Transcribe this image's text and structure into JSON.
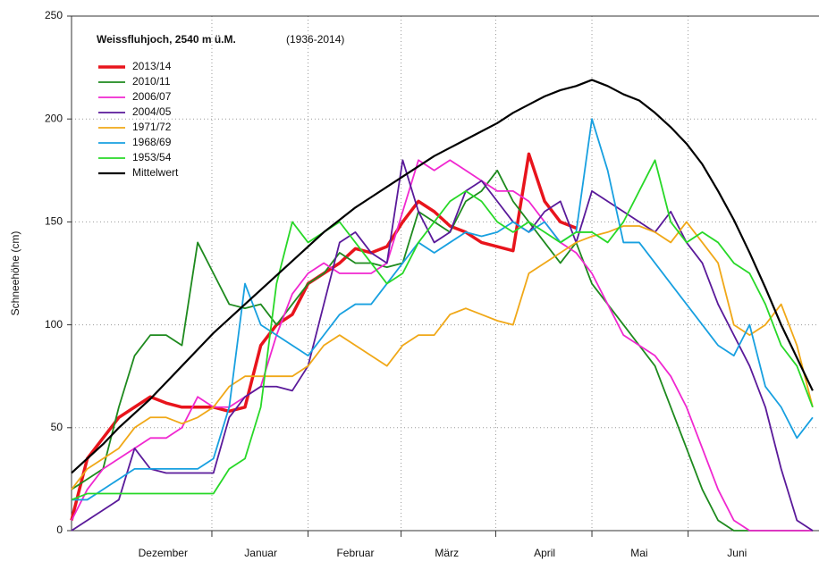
{
  "chart_data": {
    "type": "line",
    "title": "Weissfluhjoch, 2540 m ü.M.",
    "subtitle": "(1936-2014)",
    "y_label": "Schneehöhe (cm)",
    "x": [
      -14,
      -9,
      -4,
      1,
      6,
      11,
      16,
      21,
      26,
      31,
      36,
      41,
      46,
      51,
      56,
      61,
      66,
      71,
      76,
      81,
      86,
      91,
      96,
      101,
      106,
      111,
      116,
      121,
      126,
      131,
      136,
      141,
      146,
      151,
      156,
      161,
      166,
      171,
      176,
      181,
      186,
      191,
      196,
      201,
      206,
      211,
      216,
      221
    ],
    "xlim": [
      -14,
      223
    ],
    "xticks": [
      {
        "value": 15,
        "label": "Dezember"
      },
      {
        "value": 46,
        "label": "Januar"
      },
      {
        "value": 76,
        "label": "Februar"
      },
      {
        "value": 105,
        "label": "März"
      },
      {
        "value": 136,
        "label": "April"
      },
      {
        "value": 166,
        "label": "Mai"
      },
      {
        "value": 197,
        "label": "Juni"
      }
    ],
    "ylim": [
      0,
      250
    ],
    "yticks": [
      0,
      50,
      100,
      150,
      200,
      250
    ],
    "grid": true,
    "legend": "upper left",
    "series": [
      {
        "name": "2013/14",
        "color": "#e8141c",
        "width": 3.5,
        "values": [
          5,
          35,
          45,
          55,
          60,
          65,
          62,
          60,
          60,
          60,
          58,
          60,
          90,
          100,
          105,
          120,
          125,
          130,
          137,
          135,
          138,
          150,
          160,
          155,
          148,
          145,
          140,
          138,
          136,
          183,
          160,
          150,
          147,
          null,
          null,
          null,
          null,
          null,
          null,
          null,
          null,
          null,
          null,
          null,
          null,
          null,
          null,
          null
        ]
      },
      {
        "name": "2010/11",
        "color": "#1e8a1e",
        "width": 1.8,
        "values": [
          20,
          25,
          30,
          60,
          85,
          95,
          95,
          90,
          140,
          125,
          110,
          108,
          110,
          100,
          110,
          120,
          125,
          135,
          130,
          130,
          128,
          130,
          155,
          150,
          145,
          160,
          165,
          175,
          160,
          150,
          140,
          130,
          140,
          120,
          110,
          100,
          90,
          80,
          60,
          40,
          20,
          5,
          0,
          0,
          0,
          0,
          0,
          0
        ]
      },
      {
        "name": "2006/07",
        "color": "#f028d0",
        "width": 1.8,
        "values": [
          5,
          20,
          30,
          35,
          40,
          45,
          45,
          50,
          65,
          60,
          60,
          65,
          70,
          95,
          115,
          125,
          130,
          125,
          125,
          125,
          130,
          155,
          180,
          175,
          180,
          175,
          170,
          165,
          165,
          160,
          150,
          140,
          135,
          125,
          110,
          95,
          90,
          85,
          75,
          60,
          40,
          20,
          5,
          0,
          0,
          0,
          0,
          0
        ]
      },
      {
        "name": "2004/05",
        "color": "#5a1a9a",
        "width": 1.8,
        "values": [
          0,
          5,
          10,
          15,
          40,
          30,
          28,
          28,
          28,
          28,
          55,
          65,
          70,
          70,
          68,
          80,
          110,
          140,
          145,
          135,
          130,
          180,
          155,
          140,
          145,
          165,
          170,
          160,
          150,
          145,
          155,
          160,
          140,
          165,
          160,
          155,
          150,
          145,
          155,
          140,
          130,
          110,
          95,
          80,
          60,
          30,
          5,
          0
        ]
      },
      {
        "name": "1971/72",
        "color": "#f0a818",
        "width": 1.8,
        "values": [
          20,
          30,
          35,
          40,
          50,
          55,
          55,
          52,
          55,
          60,
          70,
          75,
          75,
          75,
          75,
          80,
          90,
          95,
          90,
          85,
          80,
          90,
          95,
          95,
          105,
          108,
          105,
          102,
          100,
          125,
          130,
          135,
          140,
          143,
          145,
          148,
          148,
          145,
          140,
          150,
          140,
          130,
          100,
          95,
          100,
          110,
          90,
          60
        ]
      },
      {
        "name": "1968/69",
        "color": "#18a0e0",
        "width": 1.8,
        "values": [
          15,
          15,
          20,
          25,
          30,
          30,
          30,
          30,
          30,
          35,
          60,
          120,
          100,
          95,
          90,
          85,
          95,
          105,
          110,
          110,
          120,
          130,
          140,
          135,
          140,
          145,
          143,
          145,
          150,
          145,
          150,
          140,
          145,
          200,
          175,
          140,
          140,
          130,
          120,
          110,
          100,
          90,
          85,
          100,
          70,
          60,
          45,
          55
        ]
      },
      {
        "name": "1953/54",
        "color": "#28d828",
        "width": 1.8,
        "values": [
          15,
          18,
          18,
          18,
          18,
          18,
          18,
          18,
          18,
          18,
          30,
          35,
          60,
          120,
          150,
          140,
          145,
          150,
          140,
          130,
          120,
          125,
          140,
          150,
          160,
          165,
          160,
          150,
          145,
          150,
          145,
          140,
          145,
          145,
          140,
          150,
          165,
          180,
          150,
          140,
          145,
          140,
          130,
          125,
          110,
          90,
          80,
          60
        ]
      },
      {
        "name": "Mittelwert",
        "color": "#000000",
        "width": 2.2,
        "values": [
          28,
          35,
          42,
          50,
          57,
          64,
          72,
          80,
          88,
          96,
          103,
          110,
          117,
          124,
          131,
          138,
          145,
          151,
          157,
          162,
          167,
          172,
          177,
          182,
          186,
          190,
          194,
          198,
          203,
          207,
          211,
          214,
          216,
          219,
          216,
          212,
          209,
          203,
          196,
          188,
          178,
          165,
          151,
          135,
          118,
          100,
          84,
          68
        ]
      }
    ]
  }
}
